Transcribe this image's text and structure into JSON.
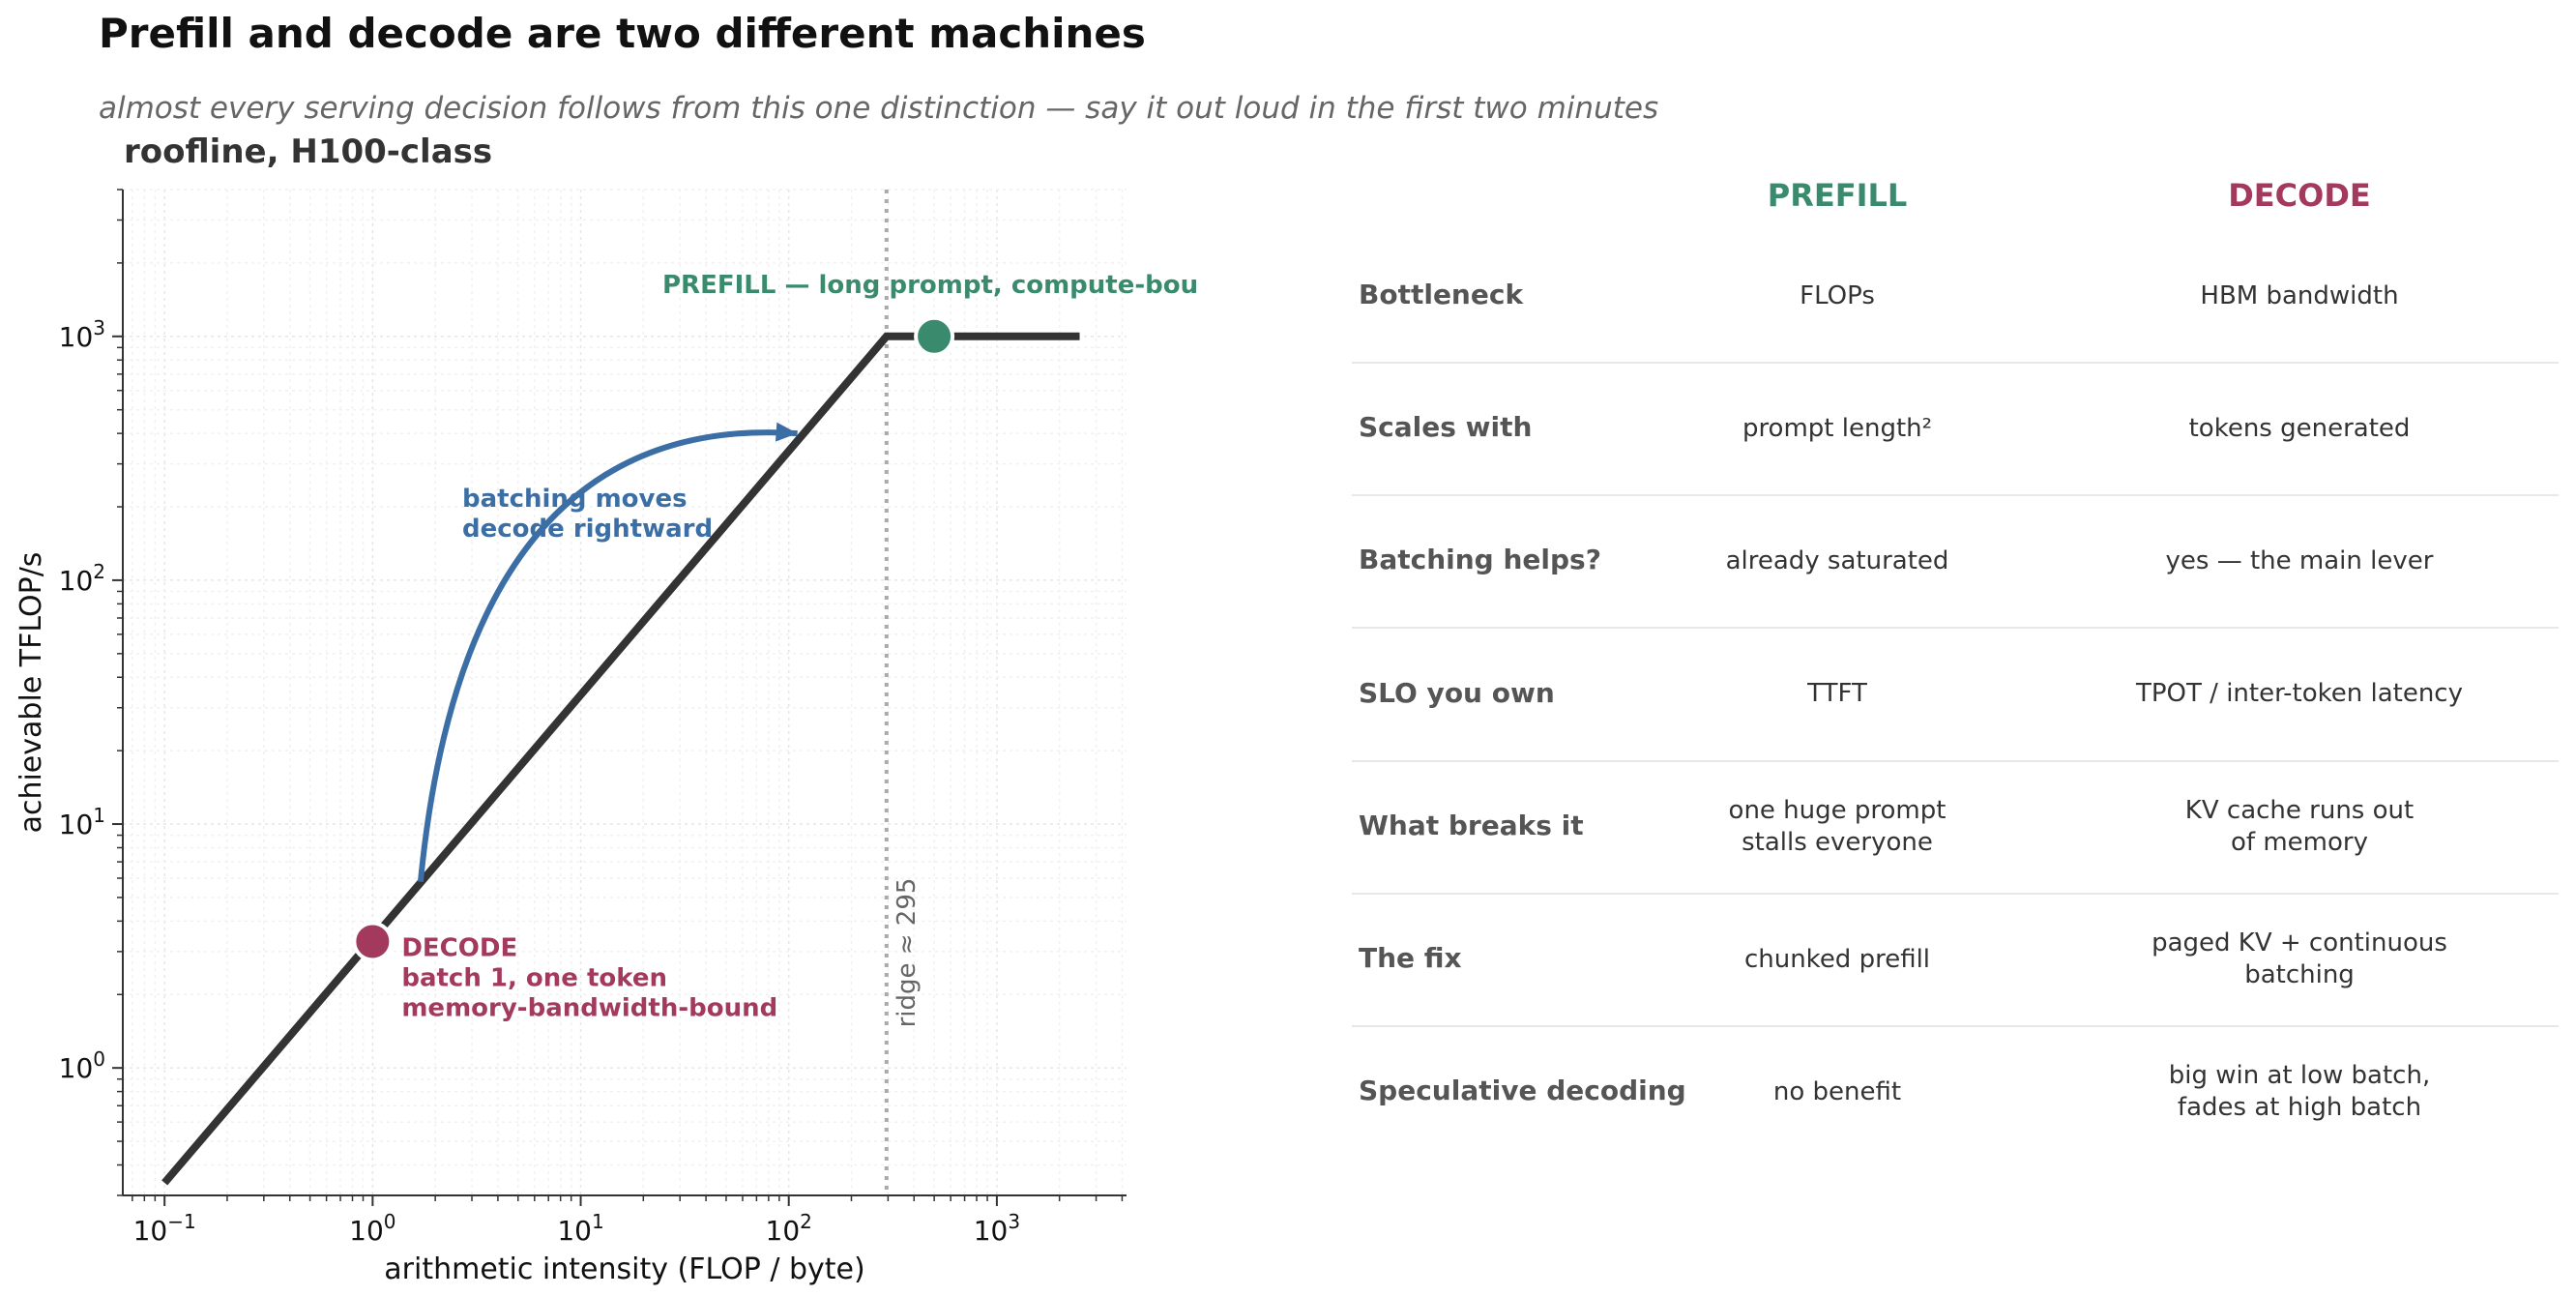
{
  "header": {
    "title": "Prefill and decode are two different machines",
    "subtitle": "almost every serving decision follows from this one distinction — say it out loud in the first two minutes"
  },
  "chart_data": {
    "type": "line",
    "title": "roofline, H100-class",
    "xlabel": "arithmetic intensity (FLOP / byte)",
    "ylabel": "achievable TFLOP/s",
    "xscale": "log",
    "yscale": "log",
    "xlim": [
      0.063,
      4200
    ],
    "ylim": [
      0.3,
      4000
    ],
    "grid": true,
    "x_ticks": [
      {
        "value": 0.1,
        "base": "10",
        "exp": "−1"
      },
      {
        "value": 1,
        "base": "10",
        "exp": "0"
      },
      {
        "value": 10,
        "base": "10",
        "exp": "1"
      },
      {
        "value": 100,
        "base": "10",
        "exp": "2"
      },
      {
        "value": 1000,
        "base": "10",
        "exp": "3"
      }
    ],
    "y_ticks": [
      {
        "value": 1,
        "base": "10",
        "exp": "0"
      },
      {
        "value": 10,
        "base": "10",
        "exp": "1"
      },
      {
        "value": 100,
        "base": "10",
        "exp": "2"
      },
      {
        "value": 1000,
        "base": "10",
        "exp": "3"
      }
    ],
    "roofline": {
      "color": "#333333",
      "points": [
        [
          0.1,
          0.338
        ],
        [
          295,
          1000
        ],
        [
          2500,
          1000
        ]
      ]
    },
    "ridge": {
      "x": 295,
      "label": "ridge ≈ 295",
      "color": "#aaaaaa"
    },
    "points": [
      {
        "name": "decode",
        "x": 1.0,
        "y": 3.3,
        "color": "#a33a5e",
        "label_lines": [
          "DECODE",
          "batch 1, one token",
          "memory-bandwidth-bound"
        ]
      },
      {
        "name": "prefill",
        "x": 500,
        "y": 1000,
        "color": "#3a8a6e",
        "label_lines": [
          "PREFILL — long prompt, compute-bound"
        ]
      }
    ],
    "arrow": {
      "color": "#3a6ea5",
      "from": [
        1.7,
        5.8
      ],
      "to": [
        110,
        400
      ],
      "label_lines": [
        "batching moves",
        "decode rightward"
      ]
    }
  },
  "comparison": {
    "columns": [
      {
        "label": "PREFILL",
        "color": "#3a8a6e"
      },
      {
        "label": "DECODE",
        "color": "#a33a5e"
      }
    ],
    "rows": [
      {
        "label": "Bottleneck",
        "prefill": [
          "FLOPs"
        ],
        "decode": [
          "HBM bandwidth"
        ]
      },
      {
        "label": "Scales with",
        "prefill": [
          "prompt length²"
        ],
        "decode": [
          "tokens generated"
        ]
      },
      {
        "label": "Batching helps?",
        "prefill": [
          "already saturated"
        ],
        "decode": [
          "yes — the main lever"
        ]
      },
      {
        "label": "SLO you own",
        "prefill": [
          "TTFT"
        ],
        "decode": [
          "TPOT / inter-token latency"
        ]
      },
      {
        "label": "What breaks it",
        "prefill": [
          "one huge prompt",
          "stalls everyone"
        ],
        "decode": [
          "KV cache runs out",
          "of memory"
        ]
      },
      {
        "label": "The fix",
        "prefill": [
          "chunked prefill"
        ],
        "decode": [
          "paged KV + continuous",
          "batching"
        ]
      },
      {
        "label": "Speculative decoding",
        "prefill": [
          "no benefit"
        ],
        "decode": [
          "big win at low batch,",
          "fades at high batch"
        ]
      }
    ]
  }
}
